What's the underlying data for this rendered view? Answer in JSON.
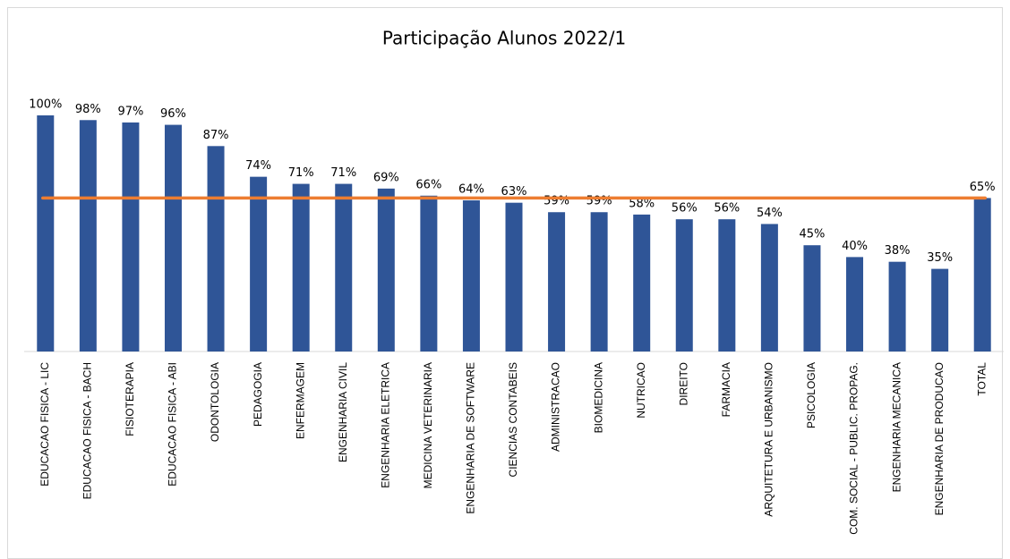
{
  "chart_data": {
    "type": "bar",
    "title": "Participação Alunos 2022/1",
    "categories": [
      "EDUCACAO FISICA - LIC",
      "EDUCACAO FISICA - BACH",
      "FISIOTERAPIA",
      "EDUCACAO FISICA - ABI",
      "ODONTOLOGIA",
      "PEDAGOGIA",
      "ENFERMAGEM",
      "ENGENHARIA CIVIL",
      "ENGENHARIA ELETRICA",
      "MEDICINA VETERINARIA",
      "ENGENHARIA DE SOFTWARE",
      "CIENCIAS CONTABEIS",
      "ADMINISTRACAO",
      "BIOMEDICINA",
      "NUTRICAO",
      "DIREITO",
      "FARMACIA",
      "ARQUITETURA E URBANISMO",
      "PSICOLOGIA",
      "COM. SOCIAL - PUBLIC. PROPAG.",
      "ENGENHARIA MECANICA",
      "ENGENHARIA DE PRODUCAO",
      "TOTAL"
    ],
    "values": [
      100,
      98,
      97,
      96,
      87,
      74,
      71,
      71,
      69,
      66,
      64,
      63,
      59,
      59,
      58,
      56,
      56,
      54,
      45,
      40,
      38,
      35,
      65
    ],
    "value_labels": [
      "100%",
      "98%",
      "97%",
      "96%",
      "87%",
      "74%",
      "71%",
      "71%",
      "69%",
      "66%",
      "64%",
      "63%",
      "59%",
      "59%",
      "58%",
      "56%",
      "56%",
      "54%",
      "45%",
      "40%",
      "38%",
      "35%",
      "65%"
    ],
    "color": "#2f5597",
    "reference_line": {
      "value": 65,
      "color": "#ed7d31"
    },
    "ylim": [
      0,
      100
    ]
  }
}
